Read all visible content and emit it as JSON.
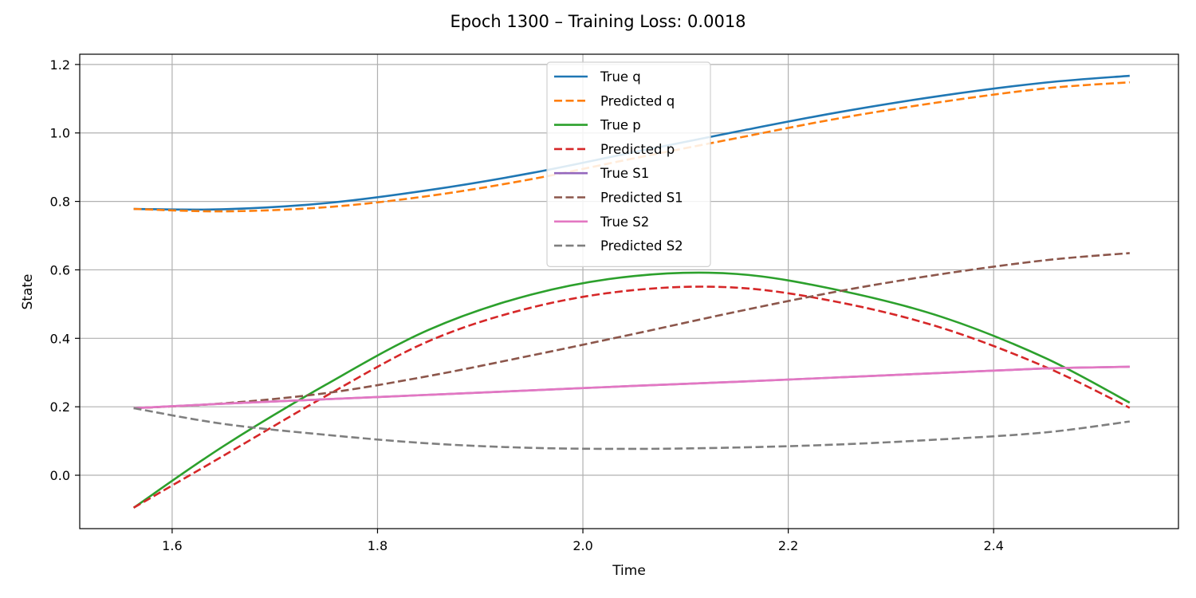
{
  "chart_data": {
    "type": "line",
    "title": "Epoch 1300 – Training Loss: 0.0018",
    "xlabel": "Time",
    "ylabel": "State",
    "xlim": [
      1.51,
      2.58
    ],
    "ylim": [
      -0.156,
      1.23
    ],
    "xticks": [
      1.6,
      1.8,
      2.0,
      2.2,
      2.4
    ],
    "xtick_labels": [
      "1.6",
      "1.8",
      "2.0",
      "2.2",
      "2.4"
    ],
    "yticks": [
      0.0,
      0.2,
      0.4,
      0.6,
      0.8,
      1.0,
      1.2
    ],
    "ytick_labels": [
      "0.0",
      "0.2",
      "0.4",
      "0.6",
      "0.8",
      "1.0",
      "1.2"
    ],
    "grid": true,
    "legend_position": "upper-center",
    "x": [
      1.5625,
      1.65,
      1.75,
      1.85,
      1.95,
      2.05,
      2.15,
      2.25,
      2.35,
      2.45,
      2.5325
    ],
    "series": [
      {
        "name": "True q",
        "color": "#1f77b4",
        "dash": "solid",
        "values": [
          0.778,
          0.777,
          0.795,
          0.833,
          0.883,
          0.944,
          1.004,
          1.061,
          1.109,
          1.147,
          1.167
        ]
      },
      {
        "name": "Predicted q",
        "color": "#ff7f0e",
        "dash": "dashed",
        "values": [
          0.778,
          0.771,
          0.783,
          0.816,
          0.865,
          0.926,
          0.985,
          1.043,
          1.091,
          1.13,
          1.148
        ]
      },
      {
        "name": "True p",
        "color": "#2ca02c",
        "dash": "solid",
        "values": [
          -0.095,
          0.085,
          0.265,
          0.425,
          0.528,
          0.582,
          0.588,
          0.54,
          0.462,
          0.343,
          0.212
        ]
      },
      {
        "name": "Predicted p",
        "color": "#d62728",
        "dash": "dashed",
        "values": [
          -0.095,
          0.057,
          0.232,
          0.392,
          0.49,
          0.541,
          0.548,
          0.505,
          0.43,
          0.317,
          0.197
        ]
      },
      {
        "name": "True S1",
        "color": "#9467bd",
        "dash": "solid",
        "values": [
          0.196,
          0.209,
          0.222,
          0.235,
          0.248,
          0.261,
          0.273,
          0.286,
          0.299,
          0.312,
          0.317
        ]
      },
      {
        "name": "Predicted S1",
        "color": "#8c564b",
        "dash": "dashed",
        "values": [
          0.196,
          0.21,
          0.24,
          0.29,
          0.35,
          0.413,
          0.478,
          0.538,
          0.588,
          0.628,
          0.649
        ]
      },
      {
        "name": "True S2",
        "color": "#e377c2",
        "dash": "solid",
        "values": [
          0.196,
          0.209,
          0.222,
          0.235,
          0.248,
          0.261,
          0.273,
          0.286,
          0.299,
          0.312,
          0.317
        ]
      },
      {
        "name": "Predicted S2",
        "color": "#7f7f7f",
        "dash": "dashed",
        "values": [
          0.196,
          0.15,
          0.118,
          0.093,
          0.08,
          0.077,
          0.081,
          0.09,
          0.105,
          0.125,
          0.157
        ]
      }
    ]
  }
}
